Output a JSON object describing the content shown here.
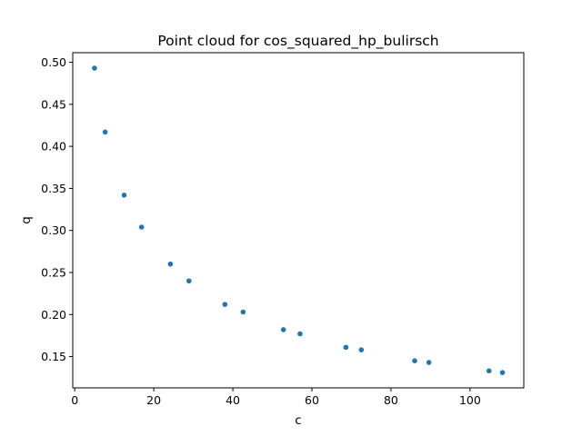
{
  "chart_data": {
    "type": "scatter",
    "title": "Point cloud for cos_squared_hp_bulirsch",
    "xlabel": "c",
    "ylabel": "q",
    "xlim": [
      -0.5,
      113.6
    ],
    "ylim": [
      0.1128,
      0.5114
    ],
    "xticks": [
      0,
      20,
      40,
      60,
      80,
      100
    ],
    "xtick_labels": [
      "0",
      "20",
      "40",
      "60",
      "80",
      "100"
    ],
    "yticks": [
      0.15,
      0.2,
      0.25,
      0.3,
      0.35,
      0.4,
      0.45,
      0.5
    ],
    "ytick_labels": [
      "0.15",
      "0.20",
      "0.25",
      "0.30",
      "0.35",
      "0.40",
      "0.45",
      "0.50"
    ],
    "grid": false,
    "marker_color": "#1f77b4",
    "points": [
      {
        "x": 5.0,
        "y": 0.493
      },
      {
        "x": 7.7,
        "y": 0.417
      },
      {
        "x": 12.5,
        "y": 0.342
      },
      {
        "x": 16.9,
        "y": 0.304
      },
      {
        "x": 24.2,
        "y": 0.26
      },
      {
        "x": 28.9,
        "y": 0.24
      },
      {
        "x": 38.0,
        "y": 0.212
      },
      {
        "x": 42.6,
        "y": 0.203
      },
      {
        "x": 52.8,
        "y": 0.182
      },
      {
        "x": 57.0,
        "y": 0.177
      },
      {
        "x": 68.6,
        "y": 0.161
      },
      {
        "x": 72.5,
        "y": 0.158
      },
      {
        "x": 86.0,
        "y": 0.145
      },
      {
        "x": 89.6,
        "y": 0.143
      },
      {
        "x": 104.8,
        "y": 0.133
      },
      {
        "x": 108.2,
        "y": 0.131
      }
    ]
  }
}
